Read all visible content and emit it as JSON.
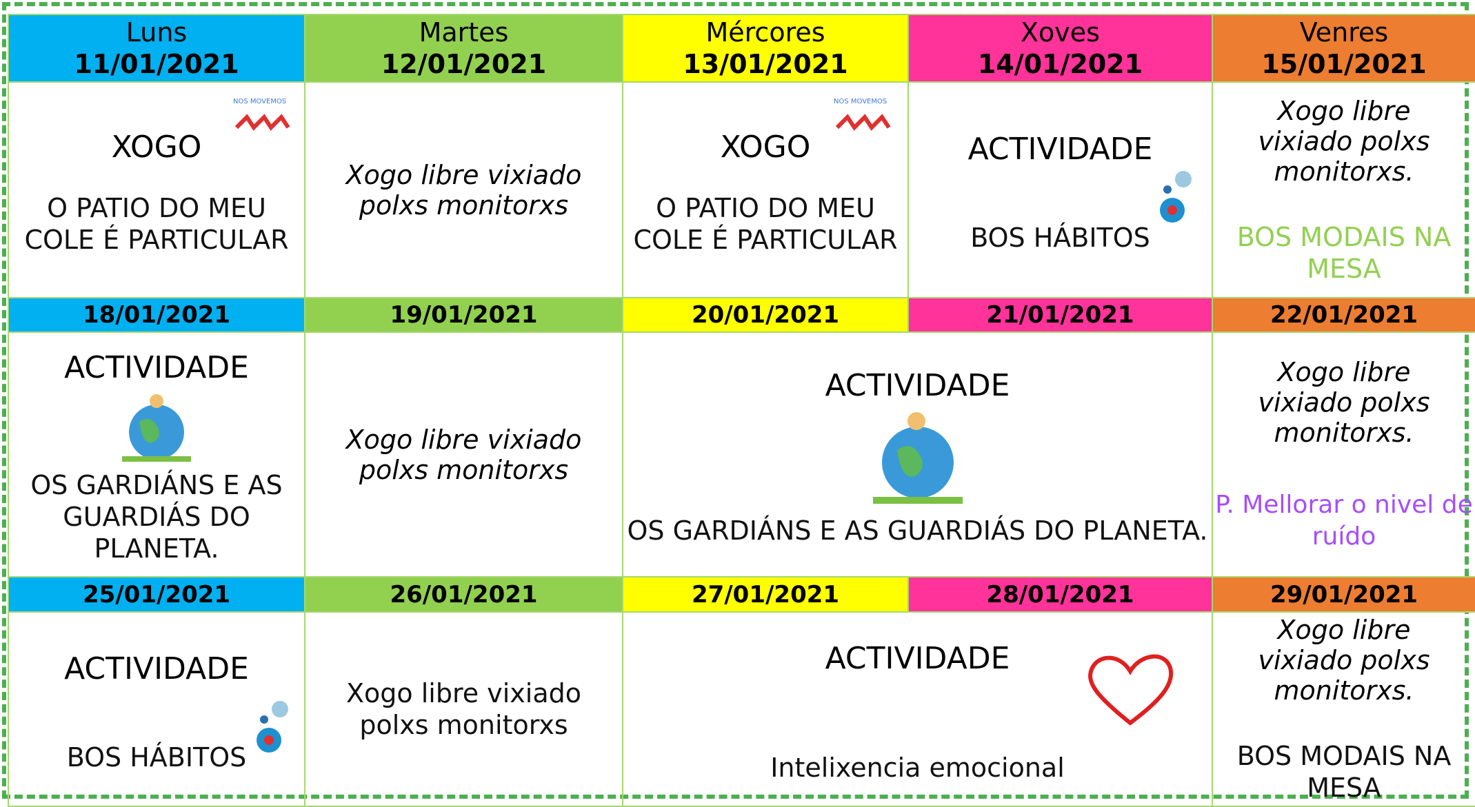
{
  "headers": [
    {
      "day": "Luns",
      "date": "11/01/2021"
    },
    {
      "day": "Martes",
      "date": "12/01/2021"
    },
    {
      "day": "Mércores",
      "date": "13/01/2021"
    },
    {
      "day": "Xoves",
      "date": "14/01/2021"
    },
    {
      "day": "Venres",
      "date": "15/01/2021"
    }
  ],
  "weeks": [
    {
      "cells": [
        {
          "title": "XOGO",
          "text": "O PATIO DO MEU COLE É PARTICULAR"
        },
        {
          "italic": "Xogo libre vixiado polxs monitorxs"
        },
        {
          "title": "XOGO",
          "text": "O PATIO DO MEU COLE É PARTICULAR"
        },
        {
          "title": "ACTIVIDADE",
          "text": "BOS HÁBITOS"
        },
        {
          "italic": "Xogo libre vixiado polxs monitorxs.",
          "text": "BOS MODAIS NA MESA"
        }
      ]
    },
    {
      "dates": [
        "18/01/2021",
        "19/01/2021",
        "20/01/2021",
        "21/01/2021",
        "22/01/2021"
      ],
      "cells": [
        {
          "title": "ACTIVIDADE",
          "text": "OS GARDIÁNS E AS GUARDIÁS DO PLANETA."
        },
        {
          "italic": "Xogo libre vixiado polxs monitorxs"
        },
        {
          "title": "ACTIVIDADE",
          "text": "OS GARDIÁNS E AS GUARDIÁS DO PLANETA."
        },
        {
          "italic": "Xogo libre vixiado polxs monitorxs.",
          "text": "P. Mellorar o nivel de ruído"
        }
      ]
    },
    {
      "dates": [
        "25/01/2021",
        "26/01/2021",
        "27/01/2021",
        "28/01/2021",
        "29/01/2021"
      ],
      "cells": [
        {
          "title": "ACTIVIDADE",
          "text": "BOS HÁBITOS"
        },
        {
          "text": "Xogo libre vixiado polxs monitorxs"
        },
        {
          "title": "ACTIVIDADE",
          "text": "Intelixencia emocional"
        },
        {
          "italic": "Xogo libre vixiado polxs monitorxs.",
          "text": "BOS MODAIS NA MESA"
        }
      ]
    }
  ]
}
